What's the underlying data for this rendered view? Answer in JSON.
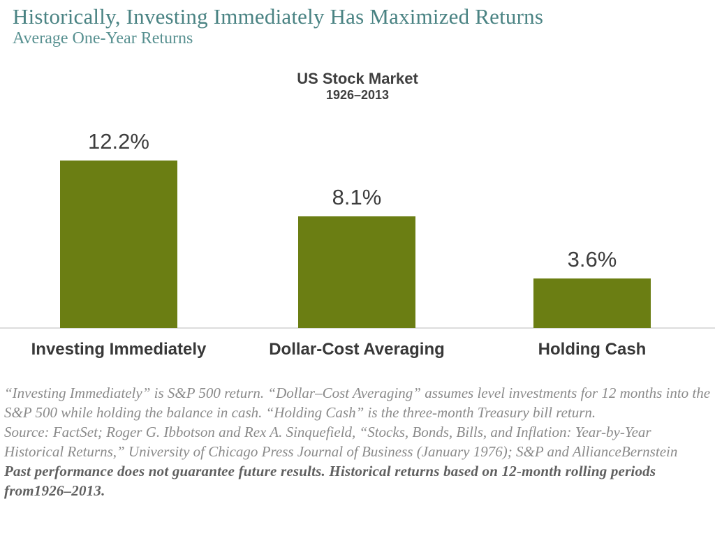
{
  "page": {
    "title": "Historically, Investing Immediately Has Maximized Returns",
    "subtitle": "Average One-Year Returns"
  },
  "chart_data": {
    "type": "bar",
    "title": "US Stock Market",
    "period": "1926–2013",
    "categories": [
      "Investing Immediately",
      "Dollar-Cost Averaging",
      "Holding Cash"
    ],
    "values": [
      12.2,
      8.1,
      3.6
    ],
    "value_labels": [
      "12.2%",
      "8.1%",
      "3.6%"
    ],
    "unit": "%",
    "bar_color": "#6b7e13",
    "ylim": [
      0,
      12.5
    ],
    "grid": false,
    "legend": false,
    "baseline_color": "#dcdcdc"
  },
  "footnotes": {
    "definition": "“Investing Immediately” is S&P 500 return. “Dollar–Cost Averaging” assumes level investments for 12 months into the S&P 500 while holding the balance in cash. “Holding Cash” is the three-month Treasury bill return.",
    "source": "Source: FactSet; Roger G. Ibbotson and Rex A. Sinquefield, “Stocks, Bonds, Bills, and Inflation: Year-by-Year Historical Returns,” University of Chicago Press Journal of Business (January 1976); S&P and AllianceBernstein",
    "disclaimer": "Past performance does not guarantee future results. Historical returns based on 12-month rolling periods from1926–2013."
  },
  "colors": {
    "title_teal": "#4a8383",
    "subtitle_teal": "#579090",
    "bar_green": "#6b7e13",
    "label_gray": "#3d3d3d",
    "footnote_gray": "#8a8a8a"
  }
}
